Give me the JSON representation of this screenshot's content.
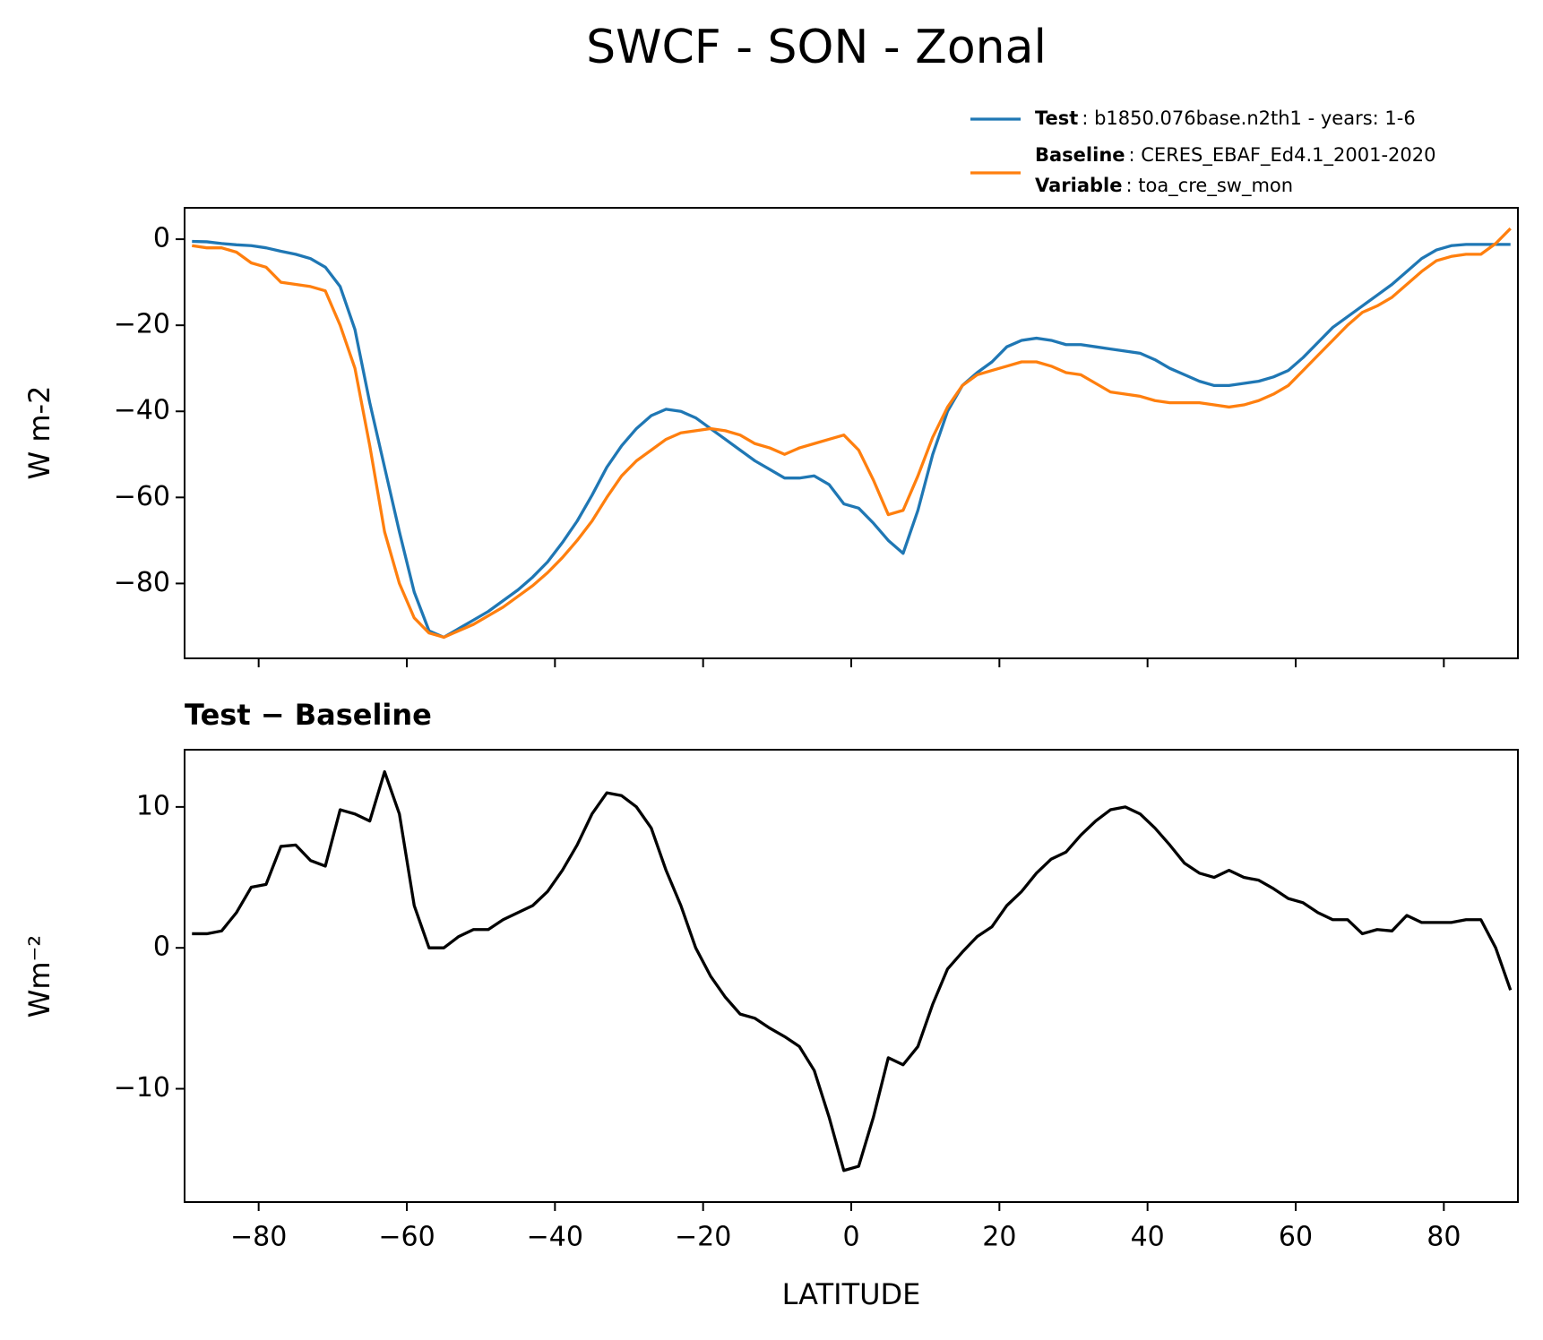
{
  "title": "SWCF - SON - Zonal",
  "chart_data": [
    {
      "type": "line",
      "y_label": "W m-2",
      "x": [
        -89,
        -87,
        -85,
        -83,
        -81,
        -79,
        -77,
        -75,
        -73,
        -71,
        -69,
        -67,
        -65,
        -63,
        -61,
        -59,
        -57,
        -55,
        -53,
        -51,
        -49,
        -47,
        -45,
        -43,
        -41,
        -39,
        -37,
        -35,
        -33,
        -31,
        -29,
        -27,
        -25,
        -23,
        -21,
        -19,
        -17,
        -15,
        -13,
        -11,
        -9,
        -7,
        -5,
        -3,
        -1,
        1,
        3,
        5,
        7,
        9,
        11,
        13,
        15,
        17,
        19,
        21,
        23,
        25,
        27,
        29,
        31,
        33,
        35,
        37,
        39,
        41,
        43,
        45,
        47,
        49,
        51,
        53,
        55,
        57,
        59,
        61,
        63,
        65,
        67,
        69,
        71,
        73,
        75,
        77,
        79,
        81,
        83,
        85,
        87,
        89
      ],
      "series": [
        {
          "name": "Test",
          "legend_text": ": b1850.076base.n2th1 - years: 1-6",
          "color": "#1f77b4",
          "values": [
            -0.5,
            -0.6,
            -1,
            -1.3,
            -1.5,
            -2,
            -2.8,
            -3.5,
            -4.5,
            -6.5,
            -11,
            -21,
            -38,
            -53,
            -68,
            -82,
            -91,
            -92.5,
            -90.5,
            -88.5,
            -86.5,
            -84,
            -81.5,
            -78.5,
            -75,
            -70.5,
            -65.5,
            -59.5,
            -53,
            -48,
            -44,
            -41,
            -39.5,
            -40,
            -41.5,
            -44,
            -46.5,
            -49,
            -51.5,
            -53.5,
            -55.5,
            -55.5,
            -55,
            -57,
            -61.5,
            -62.5,
            -66,
            -70,
            -73,
            -63,
            -50,
            -40,
            -34,
            -31,
            -28.5,
            -25,
            -23.5,
            -23,
            -23.5,
            -24.5,
            -24.5,
            -25,
            -25.5,
            -26,
            -26.5,
            -28,
            -30,
            -31.5,
            -33,
            -34,
            -34,
            -33.5,
            -33,
            -32,
            -30.5,
            -27.5,
            -24,
            -20.5,
            -18,
            -15.5,
            -13,
            -10.5,
            -7.5,
            -4.5,
            -2.5,
            -1.5,
            -1.2,
            -1.2,
            -1.2,
            -1.2
          ]
        },
        {
          "name": "Baseline",
          "legend_text": ": CERES_EBAF_Ed4.1_2001-2020",
          "color": "#ff7f0e",
          "values": [
            -1.5,
            -2,
            -2,
            -3,
            -5.5,
            -6.5,
            -10,
            -10.5,
            -11,
            -12,
            -20,
            -30,
            -48,
            -68,
            -80,
            -88,
            -91.5,
            -92.5,
            -91,
            -89.5,
            -87.5,
            -85.5,
            -83,
            -80.5,
            -77.5,
            -74,
            -70,
            -65.5,
            -60,
            -55,
            -51.5,
            -49,
            -46.5,
            -45,
            -44.5,
            -44,
            -44.5,
            -45.5,
            -47.5,
            -48.5,
            -50,
            -48.5,
            -47.5,
            -46.5,
            -45.5,
            -49,
            -56,
            -64,
            -63,
            -55,
            -46,
            -39,
            -34,
            -31.5,
            -30.5,
            -29.5,
            -28.5,
            -28.5,
            -29.5,
            -31,
            -31.5,
            -33.5,
            -35.5,
            -36,
            -36.5,
            -37.5,
            -38,
            -38,
            -38,
            -38.5,
            -39,
            -38.5,
            -37.5,
            -36,
            -34,
            -30.5,
            -27,
            -23.5,
            -20,
            -17,
            -15.5,
            -13.5,
            -10.5,
            -7.5,
            -5,
            -4,
            -3.5,
            -3.5,
            -1,
            2.5
          ]
        }
      ],
      "legend_note": {
        "name": "Variable",
        "text": ": toa_cre_sw_mon"
      },
      "xlim": [
        -90,
        90
      ],
      "xticks": [
        -80,
        -60,
        -40,
        -20,
        0,
        20,
        40,
        60,
        80
      ],
      "ylim": [
        -97.4,
        7.3
      ],
      "yticks": [
        {
          "value": -80,
          "label": "−80"
        },
        {
          "value": -60,
          "label": "−60"
        },
        {
          "value": -40,
          "label": "−40"
        },
        {
          "value": -20,
          "label": "−20"
        },
        0
      ]
    },
    {
      "type": "line",
      "title": "Test − Baseline",
      "x_label": "LATITUDE",
      "y_label": "Wm⁻²",
      "x": [
        -89,
        -87,
        -85,
        -83,
        -81,
        -79,
        -77,
        -75,
        -73,
        -71,
        -69,
        -67,
        -65,
        -63,
        -61,
        -59,
        -57,
        -55,
        -53,
        -51,
        -49,
        -47,
        -45,
        -43,
        -41,
        -39,
        -37,
        -35,
        -33,
        -31,
        -29,
        -27,
        -25,
        -23,
        -21,
        -19,
        -17,
        -15,
        -13,
        -11,
        -9,
        -7,
        -5,
        -3,
        -1,
        1,
        3,
        5,
        7,
        9,
        11,
        13,
        15,
        17,
        19,
        21,
        23,
        25,
        27,
        29,
        31,
        33,
        35,
        37,
        39,
        41,
        43,
        45,
        47,
        49,
        51,
        53,
        55,
        57,
        59,
        61,
        63,
        65,
        67,
        69,
        71,
        73,
        75,
        77,
        79,
        81,
        83,
        85,
        87,
        89
      ],
      "series": [
        {
          "color": "#000000",
          "values": [
            1,
            1,
            1.2,
            2.5,
            4.3,
            4.5,
            7.2,
            7.3,
            6.2,
            5.8,
            9.8,
            9.5,
            9,
            12.5,
            9.5,
            3,
            0,
            0,
            0.8,
            1.3,
            1.3,
            2,
            2.5,
            3,
            4,
            5.5,
            7.3,
            9.5,
            11,
            10.8,
            10,
            8.5,
            5.5,
            3,
            0,
            -2,
            -3.5,
            -4.7,
            -5,
            -5.7,
            -6.3,
            -7,
            -8.7,
            -12,
            -15.8,
            -15.5,
            -12,
            -7.8,
            -8.3,
            -7,
            -4,
            -1.5,
            -0.3,
            0.8,
            1.5,
            3,
            4,
            5.3,
            6.3,
            6.8,
            8,
            9,
            9.8,
            10,
            9.5,
            8.5,
            7.3,
            6,
            5.3,
            5,
            5.5,
            5,
            4.8,
            4.2,
            3.5,
            3.2,
            2.5,
            2,
            2,
            1,
            1.3,
            1.2,
            2.3,
            1.8,
            1.8,
            1.8,
            2,
            2,
            0,
            -3
          ]
        }
      ],
      "xlim": [
        -90,
        90
      ],
      "xticks": [
        {
          "value": -80,
          "label": "−80"
        },
        {
          "value": -60,
          "label": "−60"
        },
        {
          "value": -40,
          "label": "−40"
        },
        {
          "value": -20,
          "label": "−20"
        },
        0,
        20,
        40,
        60,
        80
      ],
      "ylim": [
        -18.04,
        14.06
      ],
      "yticks": [
        {
          "value": -10,
          "label": "−10"
        },
        0,
        10
      ]
    }
  ]
}
